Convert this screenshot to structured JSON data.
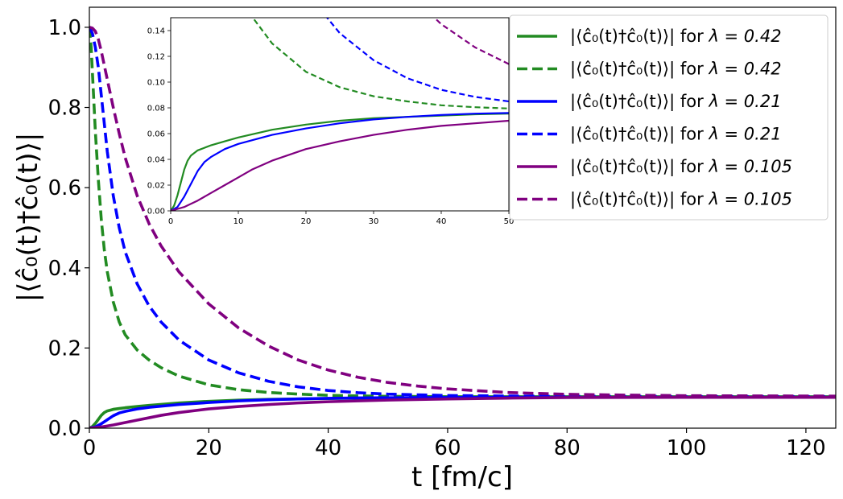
{
  "chart_data": {
    "type": "line",
    "xlabel": "t [fm/c]",
    "ylabel": "|⟨ĉ₀(t)†ĉ₀(t)⟩|",
    "xlim": [
      0,
      125
    ],
    "ylim": [
      0,
      1.05
    ],
    "xticks": [
      "0",
      "20",
      "40",
      "60",
      "80",
      "100",
      "120"
    ],
    "yticks": [
      "0.0",
      "0.2",
      "0.4",
      "0.6",
      "0.8",
      "1.0"
    ],
    "legend_position": "top-right",
    "series": [
      {
        "name": "solid-green",
        "label_prefix": "|⟨ĉ₀(t)†ĉ₀(t)⟩| for ",
        "label_param": "λ = 0.42",
        "color": "#228B22",
        "style": "solid",
        "lambda": 0.42,
        "x": [
          0,
          0.5,
          1,
          1.5,
          2,
          2.5,
          3,
          4,
          5,
          6,
          8,
          10,
          15,
          20,
          25,
          30,
          35,
          40,
          45,
          50,
          60,
          70,
          80,
          100,
          125
        ],
        "y": [
          0,
          0.004,
          0.012,
          0.022,
          0.032,
          0.039,
          0.043,
          0.047,
          0.049,
          0.051,
          0.054,
          0.057,
          0.063,
          0.067,
          0.07,
          0.072,
          0.073,
          0.074,
          0.075,
          0.0755,
          0.0762,
          0.0767,
          0.077,
          0.077,
          0.077
        ]
      },
      {
        "name": "dashed-green",
        "label_prefix": "|⟨ĉ₀(t)†ĉ₀(t)⟩| for ",
        "label_param": "λ = 0.42",
        "color": "#228B22",
        "style": "dashed",
        "lambda": 0.42,
        "x": [
          0,
          0.3,
          0.6,
          1,
          1.5,
          2,
          2.5,
          3,
          4,
          5,
          6,
          8,
          10,
          12,
          15,
          20,
          25,
          30,
          35,
          40,
          45,
          50,
          60,
          80,
          100,
          125
        ],
        "y": [
          1.0,
          0.95,
          0.86,
          0.74,
          0.62,
          0.52,
          0.445,
          0.39,
          0.315,
          0.265,
          0.233,
          0.195,
          0.17,
          0.151,
          0.13,
          0.108,
          0.096,
          0.089,
          0.085,
          0.082,
          0.0805,
          0.0795,
          0.0785,
          0.0785,
          0.0785,
          0.0785
        ]
      },
      {
        "name": "solid-blue",
        "label_prefix": "|⟨ĉ₀(t)†ĉ₀(t)⟩| for ",
        "label_param": "λ = 0.21",
        "color": "#0000FF",
        "style": "solid",
        "lambda": 0.21,
        "x": [
          0,
          1,
          2,
          3,
          4,
          5,
          6,
          8,
          10,
          15,
          20,
          25,
          30,
          35,
          40,
          45,
          50,
          60,
          70,
          80,
          100,
          125
        ],
        "y": [
          0,
          0.003,
          0.011,
          0.021,
          0.031,
          0.038,
          0.042,
          0.048,
          0.052,
          0.059,
          0.064,
          0.068,
          0.071,
          0.073,
          0.0745,
          0.0755,
          0.076,
          0.0765,
          0.077,
          0.077,
          0.077,
          0.077
        ]
      },
      {
        "name": "dashed-blue",
        "label_prefix": "|⟨ĉ₀(t)†ĉ₀(t)⟩| for ",
        "label_param": "λ = 0.21",
        "color": "#0000FF",
        "style": "dashed",
        "lambda": 0.21,
        "x": [
          0,
          0.5,
          1,
          1.5,
          2,
          3,
          4,
          5,
          6,
          8,
          10,
          12,
          15,
          20,
          25,
          30,
          35,
          40,
          45,
          50,
          60,
          70,
          80,
          100,
          125
        ],
        "y": [
          1.0,
          0.985,
          0.95,
          0.9,
          0.83,
          0.69,
          0.58,
          0.5,
          0.44,
          0.36,
          0.305,
          0.265,
          0.22,
          0.17,
          0.138,
          0.117,
          0.103,
          0.094,
          0.0885,
          0.085,
          0.0815,
          0.0802,
          0.0795,
          0.079,
          0.079
        ]
      },
      {
        "name": "solid-purple",
        "label_prefix": "|⟨ĉ₀(t)†ĉ₀(t)⟩| for ",
        "label_param": "λ = 0.105",
        "color": "#800080",
        "style": "solid",
        "lambda": 0.105,
        "x": [
          0,
          2,
          4,
          6,
          8,
          10,
          12,
          15,
          20,
          25,
          30,
          35,
          40,
          45,
          50,
          60,
          70,
          80,
          100,
          125
        ],
        "y": [
          0,
          0.003,
          0.008,
          0.014,
          0.02,
          0.026,
          0.032,
          0.039,
          0.048,
          0.054,
          0.059,
          0.063,
          0.066,
          0.068,
          0.07,
          0.073,
          0.075,
          0.0765,
          0.077,
          0.077
        ]
      },
      {
        "name": "dashed-purple",
        "label_prefix": "|⟨ĉ₀(t)†ĉ₀(t)⟩| for ",
        "label_param": "λ = 0.105",
        "color": "#800080",
        "style": "dashed",
        "lambda": 0.105,
        "x": [
          0,
          0.5,
          1,
          1.5,
          2,
          3,
          4,
          5,
          6,
          8,
          10,
          12,
          15,
          20,
          25,
          30,
          35,
          40,
          45,
          50,
          55,
          60,
          70,
          80,
          90,
          100,
          125
        ],
        "y": [
          1.0,
          0.998,
          0.99,
          0.97,
          0.94,
          0.87,
          0.8,
          0.735,
          0.675,
          0.58,
          0.51,
          0.455,
          0.39,
          0.31,
          0.25,
          0.205,
          0.17,
          0.145,
          0.127,
          0.114,
          0.105,
          0.098,
          0.089,
          0.0845,
          0.0825,
          0.081,
          0.08
        ]
      }
    ],
    "inset": {
      "xlim": [
        0,
        50
      ],
      "ylim": [
        0,
        0.15
      ],
      "xticks": [
        "0",
        "10",
        "20",
        "30",
        "40",
        "50"
      ],
      "yticks": [
        "0.00",
        "0.02",
        "0.04",
        "0.06",
        "0.08",
        "0.10",
        "0.12",
        "0.14"
      ]
    }
  }
}
